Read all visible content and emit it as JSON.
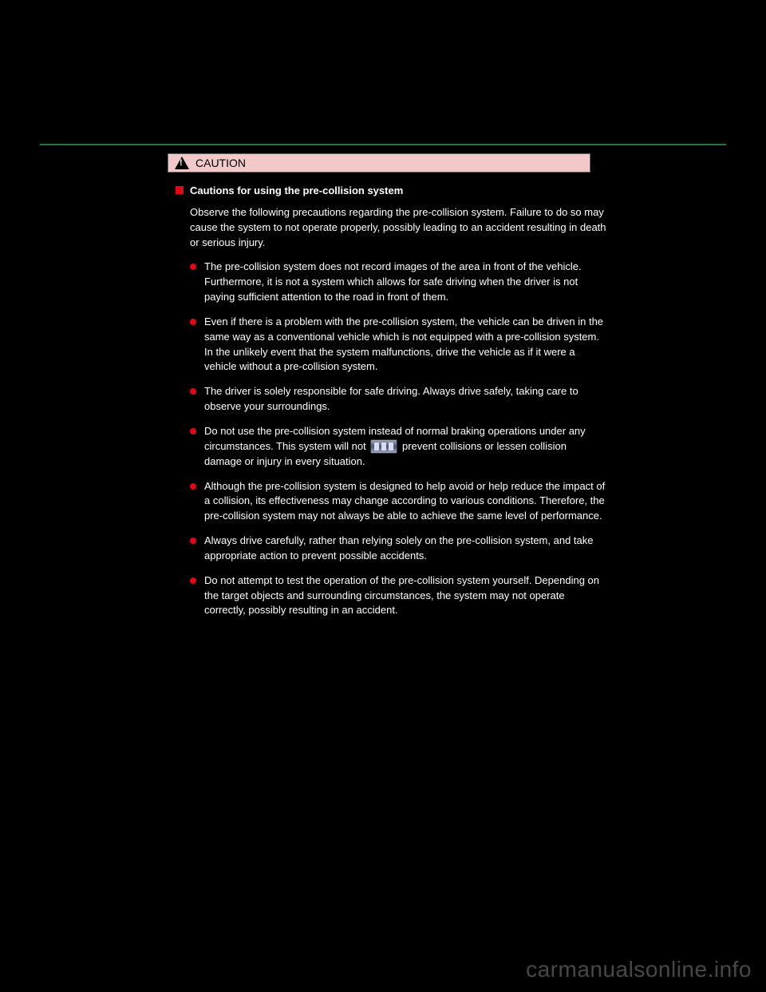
{
  "caution": {
    "label": "CAUTION"
  },
  "section": {
    "title": "Cautions for using the pre-collision system",
    "intro": "Observe the following precautions regarding the pre-collision system. Failure to do so may cause the system to not operate properly, possibly leading to an accident resulting in death or serious injury.",
    "bullets": [
      "The pre-collision system does not record images of the area in front of the vehicle. Furthermore, it is not a system which allows for safe driving when the driver is not paying sufficient attention to the road in front of them.",
      "Even if there is a problem with the pre-collision system, the vehicle can be driven in the same way as a conventional vehicle which is not equipped with a pre-collision system. In the unlikely event that the system malfunctions, drive the vehicle as if it were a vehicle without a pre-collision system.",
      "The driver is solely responsible for safe driving. Always drive safely, taking care to observe your surroundings.",
      "Do not use the pre-collision system instead of normal braking operations under any circumstances. This system will not {ICON} prevent collisions or lessen collision damage or injury in every situation.",
      "Although the pre-collision system is designed to help avoid or help reduce the impact of a collision, its effectiveness may change according to various conditions. Therefore, the pre-collision system may not always be able to achieve the same level of performance.",
      "Always drive carefully, rather than relying solely on the pre-collision system, and take appropriate action to prevent possible accidents.",
      "Do not attempt to test the operation of the pre-collision system yourself. Depending on the target objects and surrounding circumstances, the system may not operate correctly, possibly resulting in an accident."
    ]
  },
  "watermark": "carmanualsonline.info"
}
